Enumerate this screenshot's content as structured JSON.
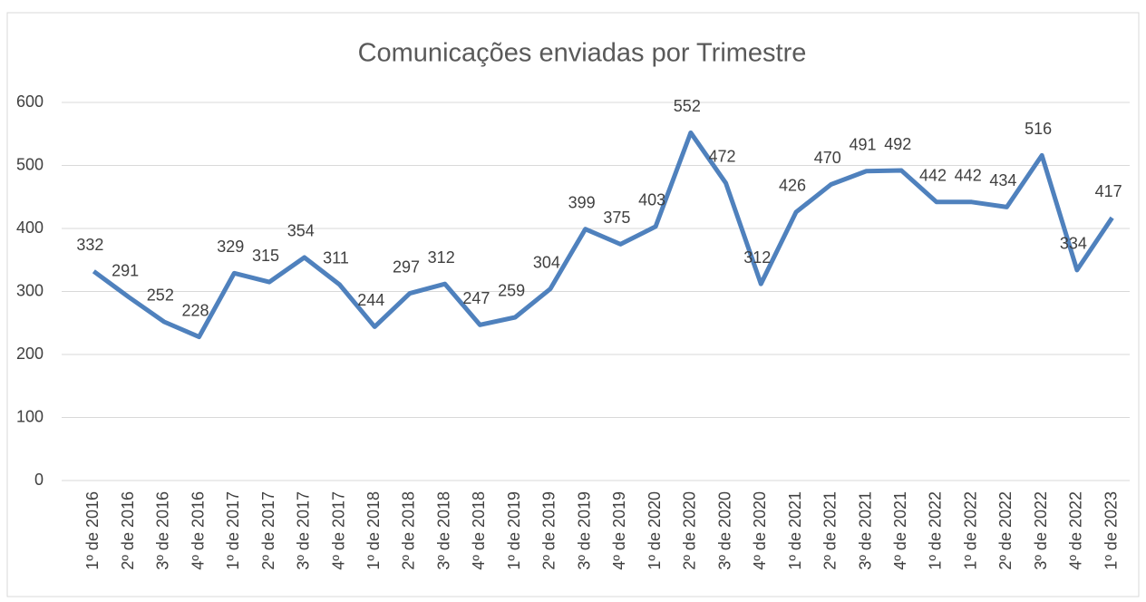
{
  "chart_data": {
    "type": "line",
    "title": "Comunicações enviadas por Trimestre",
    "categories": [
      "1º de 2016",
      "2º de 2016",
      "3º de 2016",
      "4º de 2016",
      "1º de 2017",
      "2º de 2017",
      "3º de 2017",
      "4º de 2017",
      "1º de 2018",
      "2º de 2018",
      "3º de 2018",
      "4º de 2018",
      "1º de 2019",
      "2º de 2019",
      "3º de 2019",
      "4º de 2019",
      "1º de 2020",
      "2º de 2020",
      "3º de 2020",
      "4º de 2020",
      "1º de 2021",
      "2º de 2021",
      "3º de 2021",
      "4º de 2021",
      "1º de 2022",
      "1º de 2022",
      "2º de 2022",
      "3º de 2022",
      "4º de 2022",
      "1º de 2023"
    ],
    "values": [
      332,
      291,
      252,
      228,
      329,
      315,
      354,
      311,
      244,
      297,
      312,
      247,
      259,
      304,
      399,
      375,
      403,
      552,
      472,
      312,
      426,
      470,
      491,
      492,
      442,
      442,
      434,
      516,
      334,
      417
    ],
    "color": "#4f81bd",
    "ylim": [
      0,
      600
    ],
    "yticks": [
      0,
      100,
      200,
      300,
      400,
      500,
      600
    ],
    "grid": true
  }
}
